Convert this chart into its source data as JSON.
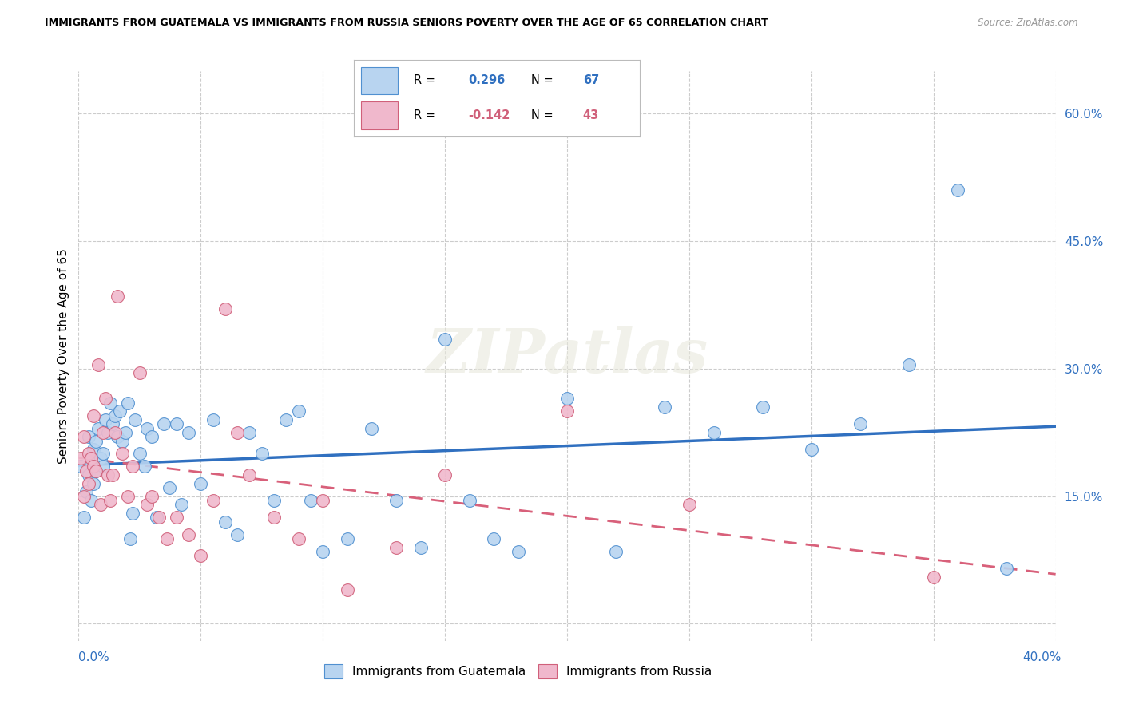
{
  "title": "IMMIGRANTS FROM GUATEMALA VS IMMIGRANTS FROM RUSSIA SENIORS POVERTY OVER THE AGE OF 65 CORRELATION CHART",
  "source": "Source: ZipAtlas.com",
  "ylabel": "Seniors Poverty Over the Age of 65",
  "blue_color": "#b8d4f0",
  "pink_color": "#f0b8cc",
  "blue_edge_color": "#5090d0",
  "pink_edge_color": "#d0607a",
  "blue_line_color": "#3070c0",
  "pink_line_color": "#d8607a",
  "r_blue": "0.296",
  "n_blue": "67",
  "r_pink": "-0.142",
  "n_pink": "43",
  "xmin": 0.0,
  "xmax": 0.4,
  "ymin": -0.02,
  "ymax": 0.65,
  "yticks": [
    0.0,
    0.15,
    0.3,
    0.45,
    0.6
  ],
  "yticklabels": [
    "",
    "15.0%",
    "30.0%",
    "45.0%",
    "60.0%"
  ],
  "watermark": "ZIPatlas",
  "guatemala_x": [
    0.001,
    0.002,
    0.003,
    0.004,
    0.004,
    0.005,
    0.005,
    0.006,
    0.006,
    0.007,
    0.007,
    0.008,
    0.009,
    0.01,
    0.01,
    0.011,
    0.012,
    0.013,
    0.014,
    0.015,
    0.016,
    0.017,
    0.018,
    0.019,
    0.02,
    0.021,
    0.022,
    0.023,
    0.025,
    0.027,
    0.028,
    0.03,
    0.032,
    0.035,
    0.037,
    0.04,
    0.042,
    0.045,
    0.05,
    0.055,
    0.06,
    0.065,
    0.07,
    0.075,
    0.08,
    0.085,
    0.09,
    0.095,
    0.1,
    0.11,
    0.12,
    0.13,
    0.14,
    0.15,
    0.16,
    0.17,
    0.18,
    0.2,
    0.22,
    0.24,
    0.26,
    0.28,
    0.3,
    0.32,
    0.34,
    0.36,
    0.38
  ],
  "guatemala_y": [
    0.185,
    0.125,
    0.155,
    0.175,
    0.22,
    0.145,
    0.19,
    0.165,
    0.205,
    0.215,
    0.18,
    0.23,
    0.195,
    0.2,
    0.185,
    0.24,
    0.225,
    0.26,
    0.235,
    0.245,
    0.22,
    0.25,
    0.215,
    0.225,
    0.26,
    0.1,
    0.13,
    0.24,
    0.2,
    0.185,
    0.23,
    0.22,
    0.125,
    0.235,
    0.16,
    0.235,
    0.14,
    0.225,
    0.165,
    0.24,
    0.12,
    0.105,
    0.225,
    0.2,
    0.145,
    0.24,
    0.25,
    0.145,
    0.085,
    0.1,
    0.23,
    0.145,
    0.09,
    0.335,
    0.145,
    0.1,
    0.085,
    0.265,
    0.085,
    0.255,
    0.225,
    0.255,
    0.205,
    0.235,
    0.305,
    0.51,
    0.065
  ],
  "russia_x": [
    0.001,
    0.002,
    0.002,
    0.003,
    0.004,
    0.004,
    0.005,
    0.006,
    0.006,
    0.007,
    0.008,
    0.009,
    0.01,
    0.011,
    0.012,
    0.013,
    0.014,
    0.015,
    0.016,
    0.018,
    0.02,
    0.022,
    0.025,
    0.028,
    0.03,
    0.033,
    0.036,
    0.04,
    0.045,
    0.05,
    0.055,
    0.06,
    0.065,
    0.07,
    0.08,
    0.09,
    0.1,
    0.11,
    0.13,
    0.15,
    0.2,
    0.25,
    0.35
  ],
  "russia_y": [
    0.195,
    0.15,
    0.22,
    0.18,
    0.165,
    0.2,
    0.195,
    0.185,
    0.245,
    0.18,
    0.305,
    0.14,
    0.225,
    0.265,
    0.175,
    0.145,
    0.175,
    0.225,
    0.385,
    0.2,
    0.15,
    0.185,
    0.295,
    0.14,
    0.15,
    0.125,
    0.1,
    0.125,
    0.105,
    0.08,
    0.145,
    0.37,
    0.225,
    0.175,
    0.125,
    0.1,
    0.145,
    0.04,
    0.09,
    0.175,
    0.25,
    0.14,
    0.055
  ]
}
